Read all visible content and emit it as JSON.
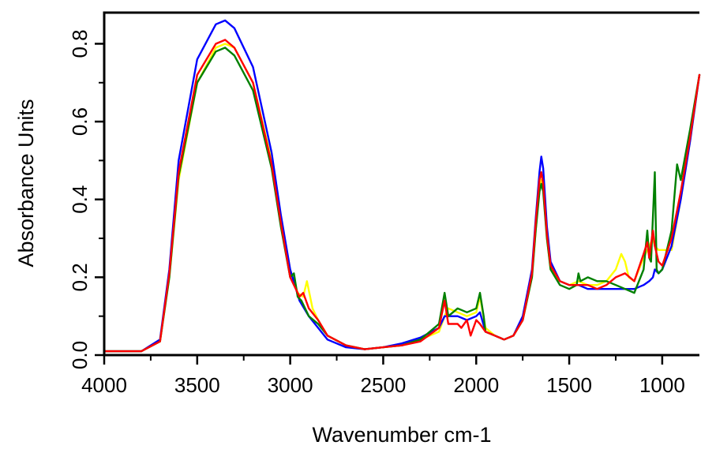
{
  "chart_data": {
    "type": "line",
    "title": "",
    "xlabel": "Wavenumber cm-1",
    "ylabel": "Absorbance Units",
    "xlim": [
      4000,
      800
    ],
    "ylim": [
      0.0,
      0.88
    ],
    "x_reversed": true,
    "grid": false,
    "x_ticks": [
      4000,
      3500,
      3000,
      2500,
      2000,
      1500,
      1000
    ],
    "x_tick_labels": [
      "4000",
      "3500",
      "3000",
      "2500",
      "2000",
      "1500",
      "1000"
    ],
    "y_ticks": [
      0.0,
      0.2,
      0.4,
      0.6,
      0.8
    ],
    "y_tick_labels": [
      "0.0",
      "0.2",
      "0.4",
      "0.6",
      "0.8"
    ],
    "series": [
      {
        "color": "#ffff00",
        "x": [
          4000,
          3800,
          3700,
          3650,
          3600,
          3500,
          3400,
          3350,
          3300,
          3200,
          3100,
          3050,
          3000,
          2960,
          2930,
          2910,
          2880,
          2850,
          2800,
          2700,
          2600,
          2500,
          2400,
          2300,
          2200,
          2170,
          2150,
          2100,
          2050,
          2000,
          1980,
          1950,
          1900,
          1850,
          1800,
          1750,
          1700,
          1680,
          1660,
          1650,
          1640,
          1620,
          1600,
          1550,
          1500,
          1450,
          1400,
          1350,
          1300,
          1250,
          1220,
          1200,
          1180,
          1150,
          1100,
          1070,
          1050,
          1040,
          1020,
          1000,
          950,
          900,
          850,
          800
        ],
        "y": [
          0.01,
          0.01,
          0.035,
          0.2,
          0.45,
          0.7,
          0.79,
          0.8,
          0.79,
          0.7,
          0.5,
          0.35,
          0.22,
          0.16,
          0.15,
          0.19,
          0.12,
          0.09,
          0.05,
          0.025,
          0.015,
          0.02,
          0.025,
          0.04,
          0.06,
          0.1,
          0.12,
          0.11,
          0.1,
          0.11,
          0.15,
          0.07,
          0.05,
          0.04,
          0.05,
          0.09,
          0.2,
          0.32,
          0.43,
          0.45,
          0.43,
          0.3,
          0.22,
          0.19,
          0.18,
          0.19,
          0.18,
          0.18,
          0.19,
          0.22,
          0.26,
          0.24,
          0.2,
          0.19,
          0.25,
          0.28,
          0.3,
          0.28,
          0.27,
          0.27,
          0.27,
          0.4,
          0.55,
          0.72
        ]
      },
      {
        "color": "#0000ff",
        "x": [
          4000,
          3800,
          3700,
          3650,
          3600,
          3500,
          3400,
          3350,
          3300,
          3200,
          3100,
          3050,
          3000,
          2950,
          2900,
          2850,
          2800,
          2700,
          2600,
          2500,
          2400,
          2300,
          2200,
          2170,
          2150,
          2100,
          2050,
          2000,
          1980,
          1950,
          1900,
          1850,
          1800,
          1750,
          1700,
          1680,
          1660,
          1650,
          1640,
          1620,
          1600,
          1550,
          1500,
          1450,
          1400,
          1350,
          1300,
          1250,
          1200,
          1150,
          1100,
          1070,
          1050,
          1040,
          1020,
          1000,
          950,
          900,
          850,
          800
        ],
        "y": [
          0.01,
          0.01,
          0.04,
          0.22,
          0.5,
          0.76,
          0.85,
          0.86,
          0.84,
          0.74,
          0.52,
          0.36,
          0.22,
          0.14,
          0.1,
          0.07,
          0.04,
          0.02,
          0.015,
          0.02,
          0.03,
          0.045,
          0.07,
          0.1,
          0.1,
          0.1,
          0.09,
          0.1,
          0.11,
          0.06,
          0.05,
          0.04,
          0.05,
          0.1,
          0.22,
          0.35,
          0.47,
          0.51,
          0.48,
          0.33,
          0.24,
          0.19,
          0.18,
          0.18,
          0.17,
          0.17,
          0.17,
          0.17,
          0.17,
          0.17,
          0.18,
          0.19,
          0.2,
          0.22,
          0.21,
          0.22,
          0.28,
          0.4,
          0.55,
          0.72
        ]
      },
      {
        "color": "#008000",
        "x": [
          4000,
          3800,
          3700,
          3650,
          3600,
          3500,
          3400,
          3350,
          3300,
          3200,
          3100,
          3050,
          3000,
          2980,
          2960,
          2940,
          2900,
          2850,
          2800,
          2700,
          2600,
          2500,
          2400,
          2300,
          2200,
          2170,
          2150,
          2100,
          2050,
          2000,
          1980,
          1960,
          1950,
          1900,
          1850,
          1800,
          1750,
          1700,
          1680,
          1660,
          1650,
          1640,
          1620,
          1600,
          1550,
          1500,
          1460,
          1450,
          1440,
          1400,
          1350,
          1300,
          1250,
          1200,
          1150,
          1100,
          1080,
          1070,
          1060,
          1040,
          1035,
          1030,
          1020,
          1000,
          950,
          920,
          900,
          850,
          800
        ],
        "y": [
          0.01,
          0.01,
          0.035,
          0.2,
          0.46,
          0.7,
          0.78,
          0.79,
          0.77,
          0.68,
          0.48,
          0.33,
          0.2,
          0.21,
          0.15,
          0.14,
          0.1,
          0.08,
          0.05,
          0.025,
          0.015,
          0.02,
          0.025,
          0.04,
          0.08,
          0.16,
          0.1,
          0.12,
          0.11,
          0.12,
          0.16,
          0.1,
          0.06,
          0.05,
          0.04,
          0.05,
          0.09,
          0.2,
          0.32,
          0.42,
          0.44,
          0.42,
          0.3,
          0.22,
          0.18,
          0.17,
          0.18,
          0.21,
          0.19,
          0.2,
          0.19,
          0.19,
          0.18,
          0.17,
          0.16,
          0.22,
          0.32,
          0.25,
          0.24,
          0.47,
          0.35,
          0.22,
          0.21,
          0.22,
          0.32,
          0.49,
          0.45,
          0.58,
          0.72
        ]
      },
      {
        "color": "#ff0000",
        "x": [
          4000,
          3800,
          3700,
          3650,
          3600,
          3500,
          3400,
          3350,
          3300,
          3200,
          3100,
          3050,
          3000,
          2950,
          2930,
          2900,
          2850,
          2800,
          2700,
          2600,
          2500,
          2400,
          2300,
          2200,
          2170,
          2150,
          2100,
          2080,
          2050,
          2030,
          2000,
          1980,
          1950,
          1900,
          1850,
          1800,
          1750,
          1700,
          1680,
          1660,
          1650,
          1640,
          1620,
          1600,
          1550,
          1500,
          1450,
          1400,
          1350,
          1300,
          1250,
          1200,
          1150,
          1100,
          1080,
          1070,
          1050,
          1040,
          1020,
          1000,
          950,
          900,
          850,
          800
        ],
        "y": [
          0.01,
          0.01,
          0.035,
          0.21,
          0.47,
          0.72,
          0.8,
          0.81,
          0.79,
          0.7,
          0.49,
          0.34,
          0.2,
          0.15,
          0.16,
          0.12,
          0.09,
          0.05,
          0.025,
          0.015,
          0.02,
          0.025,
          0.035,
          0.07,
          0.14,
          0.08,
          0.08,
          0.07,
          0.09,
          0.05,
          0.09,
          0.08,
          0.06,
          0.05,
          0.04,
          0.05,
          0.09,
          0.21,
          0.34,
          0.45,
          0.47,
          0.44,
          0.31,
          0.23,
          0.19,
          0.18,
          0.18,
          0.18,
          0.17,
          0.18,
          0.2,
          0.21,
          0.19,
          0.26,
          0.29,
          0.25,
          0.32,
          0.28,
          0.24,
          0.23,
          0.3,
          0.42,
          0.56,
          0.72
        ]
      }
    ]
  }
}
